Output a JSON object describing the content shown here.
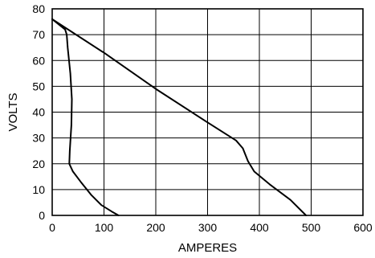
{
  "chart_data": {
    "type": "line",
    "title": "",
    "xlabel": "AMPERES",
    "ylabel": "VOLTS",
    "xlim": [
      0,
      600
    ],
    "ylim": [
      0,
      80
    ],
    "xticks": [
      0,
      100,
      200,
      300,
      400,
      500,
      600
    ],
    "yticks": [
      0,
      10,
      20,
      30,
      40,
      50,
      60,
      70,
      80
    ],
    "grid": true,
    "legend": "none",
    "line_color": "#000000",
    "series": [
      {
        "name": "",
        "points": [
          [
            0,
            76
          ],
          [
            25,
            72
          ],
          [
            28,
            70
          ],
          [
            30,
            65
          ],
          [
            35,
            55
          ],
          [
            38,
            45
          ],
          [
            37,
            35
          ],
          [
            34,
            25
          ],
          [
            33,
            20
          ],
          [
            40,
            17
          ],
          [
            55,
            13
          ],
          [
            75,
            8
          ],
          [
            95,
            4
          ],
          [
            115,
            1.5
          ],
          [
            128,
            0
          ]
        ]
      },
      {
        "name": "",
        "points": [
          [
            0,
            76
          ],
          [
            100,
            63
          ],
          [
            200,
            49
          ],
          [
            300,
            36
          ],
          [
            355,
            29
          ],
          [
            368,
            26
          ],
          [
            378,
            21
          ],
          [
            390,
            17
          ],
          [
            420,
            12
          ],
          [
            460,
            6
          ],
          [
            490,
            0
          ]
        ]
      }
    ]
  }
}
